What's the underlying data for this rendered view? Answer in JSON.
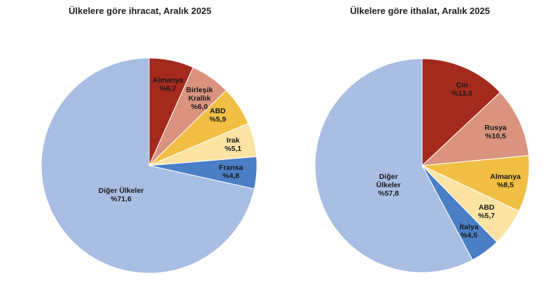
{
  "chart_data": [
    {
      "type": "pie",
      "title": "Ülkelere göre ihracat, Aralık 2025",
      "slices": [
        {
          "label": [
            "Almanya",
            "%6,7"
          ],
          "value": 6.7,
          "color": "#a52a1e",
          "text_color": "#1a1a1a"
        },
        {
          "label": [
            "Birleşik",
            "Krallık",
            "%6,0"
          ],
          "value": 6.0,
          "color": "#d9937e",
          "text_color": "#1a1a1a"
        },
        {
          "label": [
            "ABD",
            "%5,9"
          ],
          "value": 5.9,
          "color": "#f2bf45",
          "text_color": "#1a1a1a"
        },
        {
          "label": [
            "Irak",
            "%5,1"
          ],
          "value": 5.1,
          "color": "#fbe3a4",
          "text_color": "#1a1a1a"
        },
        {
          "label": [
            "Fransa",
            "%4,8"
          ],
          "value": 4.8,
          "color": "#4a7fc6",
          "text_color": "#1a1a1a"
        },
        {
          "label": [
            "Diğer Ülkeler",
            "%71,6"
          ],
          "value": 71.6,
          "color": "#a9bee3",
          "text_color": "#1a1a1a"
        }
      ]
    },
    {
      "type": "pie",
      "title": "Ülkelere göre ithalat, Aralık 2025",
      "slices": [
        {
          "label": [
            "Çin",
            "%13,0"
          ],
          "value": 13.0,
          "color": "#a52a1e",
          "text_color": "#1a1a1a"
        },
        {
          "label": [
            "Rusya",
            "%10,5"
          ],
          "value": 10.5,
          "color": "#d9937e",
          "text_color": "#1a1a1a"
        },
        {
          "label": [
            "Almanya",
            "%8,5"
          ],
          "value": 8.5,
          "color": "#f2bf45",
          "text_color": "#1a1a1a"
        },
        {
          "label": [
            "ABD",
            "%5,7"
          ],
          "value": 5.7,
          "color": "#fbe3a4",
          "text_color": "#1a1a1a"
        },
        {
          "label": [
            "İtalya",
            "%4,5"
          ],
          "value": 4.5,
          "color": "#4a7fc6",
          "text_color": "#1a1a1a"
        },
        {
          "label": [
            "Diğer",
            "Ülkeler",
            "%57,8"
          ],
          "value": 57.8,
          "color": "#a9bee3",
          "text_color": "#1a1a1a"
        }
      ]
    }
  ]
}
